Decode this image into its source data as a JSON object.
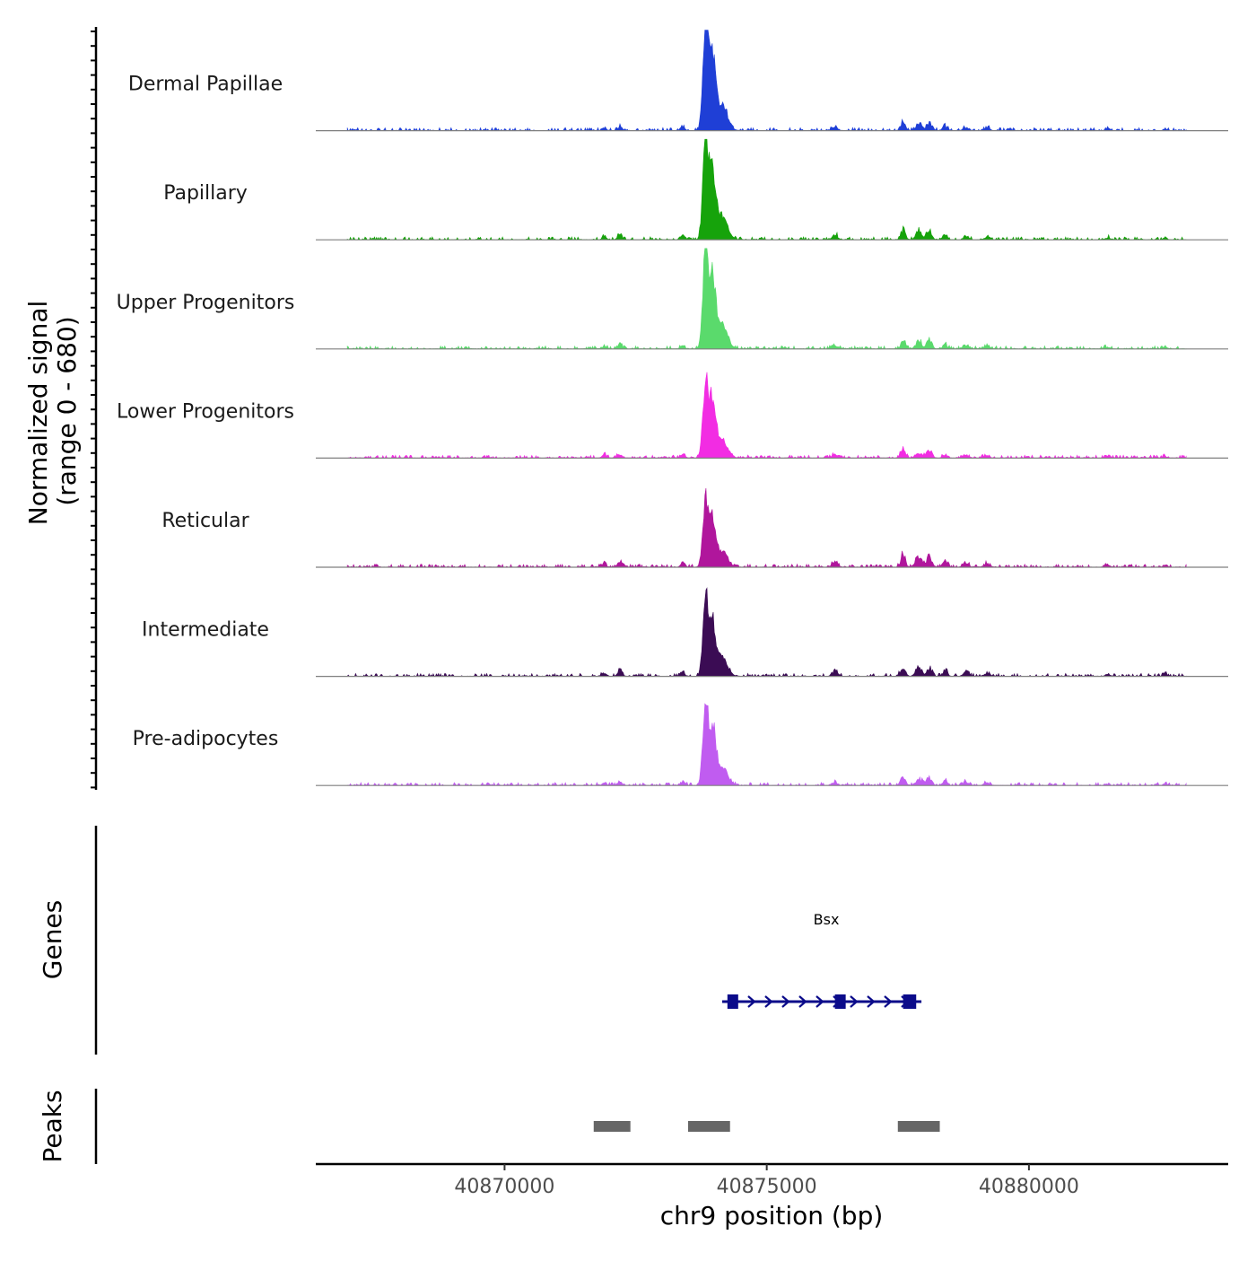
{
  "chart_data": {
    "type": "area",
    "title": "",
    "ylabel": "Normalized signal",
    "ylabel_sub": "(range 0 - 680)",
    "y_range": [
      0,
      680
    ],
    "xlabel": "chr9 position (bp)",
    "x_range": [
      40866400,
      40883800
    ],
    "x_ticks": [
      {
        "value": 40870000,
        "label": "40870000"
      },
      {
        "value": 40875000,
        "label": "40875000"
      },
      {
        "value": 40880000,
        "label": "40880000"
      }
    ],
    "tracks": [
      {
        "name": "Dermal Papillae",
        "color": "#1f3fd6",
        "peak_scale": 1.0,
        "secondary_scale": 0.09
      },
      {
        "name": "Papillary",
        "color": "#16a30b",
        "peak_scale": 0.93,
        "secondary_scale": 0.1
      },
      {
        "name": "Upper Progenitors",
        "color": "#5ada6c",
        "peak_scale": 0.95,
        "secondary_scale": 0.09
      },
      {
        "name": "Lower Progenitors",
        "color": "#f22ce3",
        "peak_scale": 0.73,
        "secondary_scale": 0.08
      },
      {
        "name": "Reticular",
        "color": "#b0169c",
        "peak_scale": 0.62,
        "secondary_scale": 0.12
      },
      {
        "name": "Intermediate",
        "color": "#3b0c54",
        "peak_scale": 0.72,
        "secondary_scale": 0.11
      },
      {
        "name": "Pre-adipocytes",
        "color": "#c05cf0",
        "peak_scale": 0.75,
        "secondary_scale": 0.08
      }
    ],
    "genes_track_label": "Genes",
    "genes": [
      {
        "name": "Bsx",
        "start": 40874150,
        "end": 40877950,
        "strand": "+",
        "color": "#0b0b8a",
        "exons": [
          [
            40874250,
            40874400
          ],
          [
            40876300,
            40876420
          ],
          [
            40877600,
            40877850
          ]
        ]
      }
    ],
    "peaks_track_label": "Peaks",
    "peaks": [
      {
        "start": 40871700,
        "end": 40872400
      },
      {
        "start": 40873500,
        "end": 40874300
      },
      {
        "start": 40877500,
        "end": 40878300
      }
    ],
    "peak_color": "#666666"
  }
}
